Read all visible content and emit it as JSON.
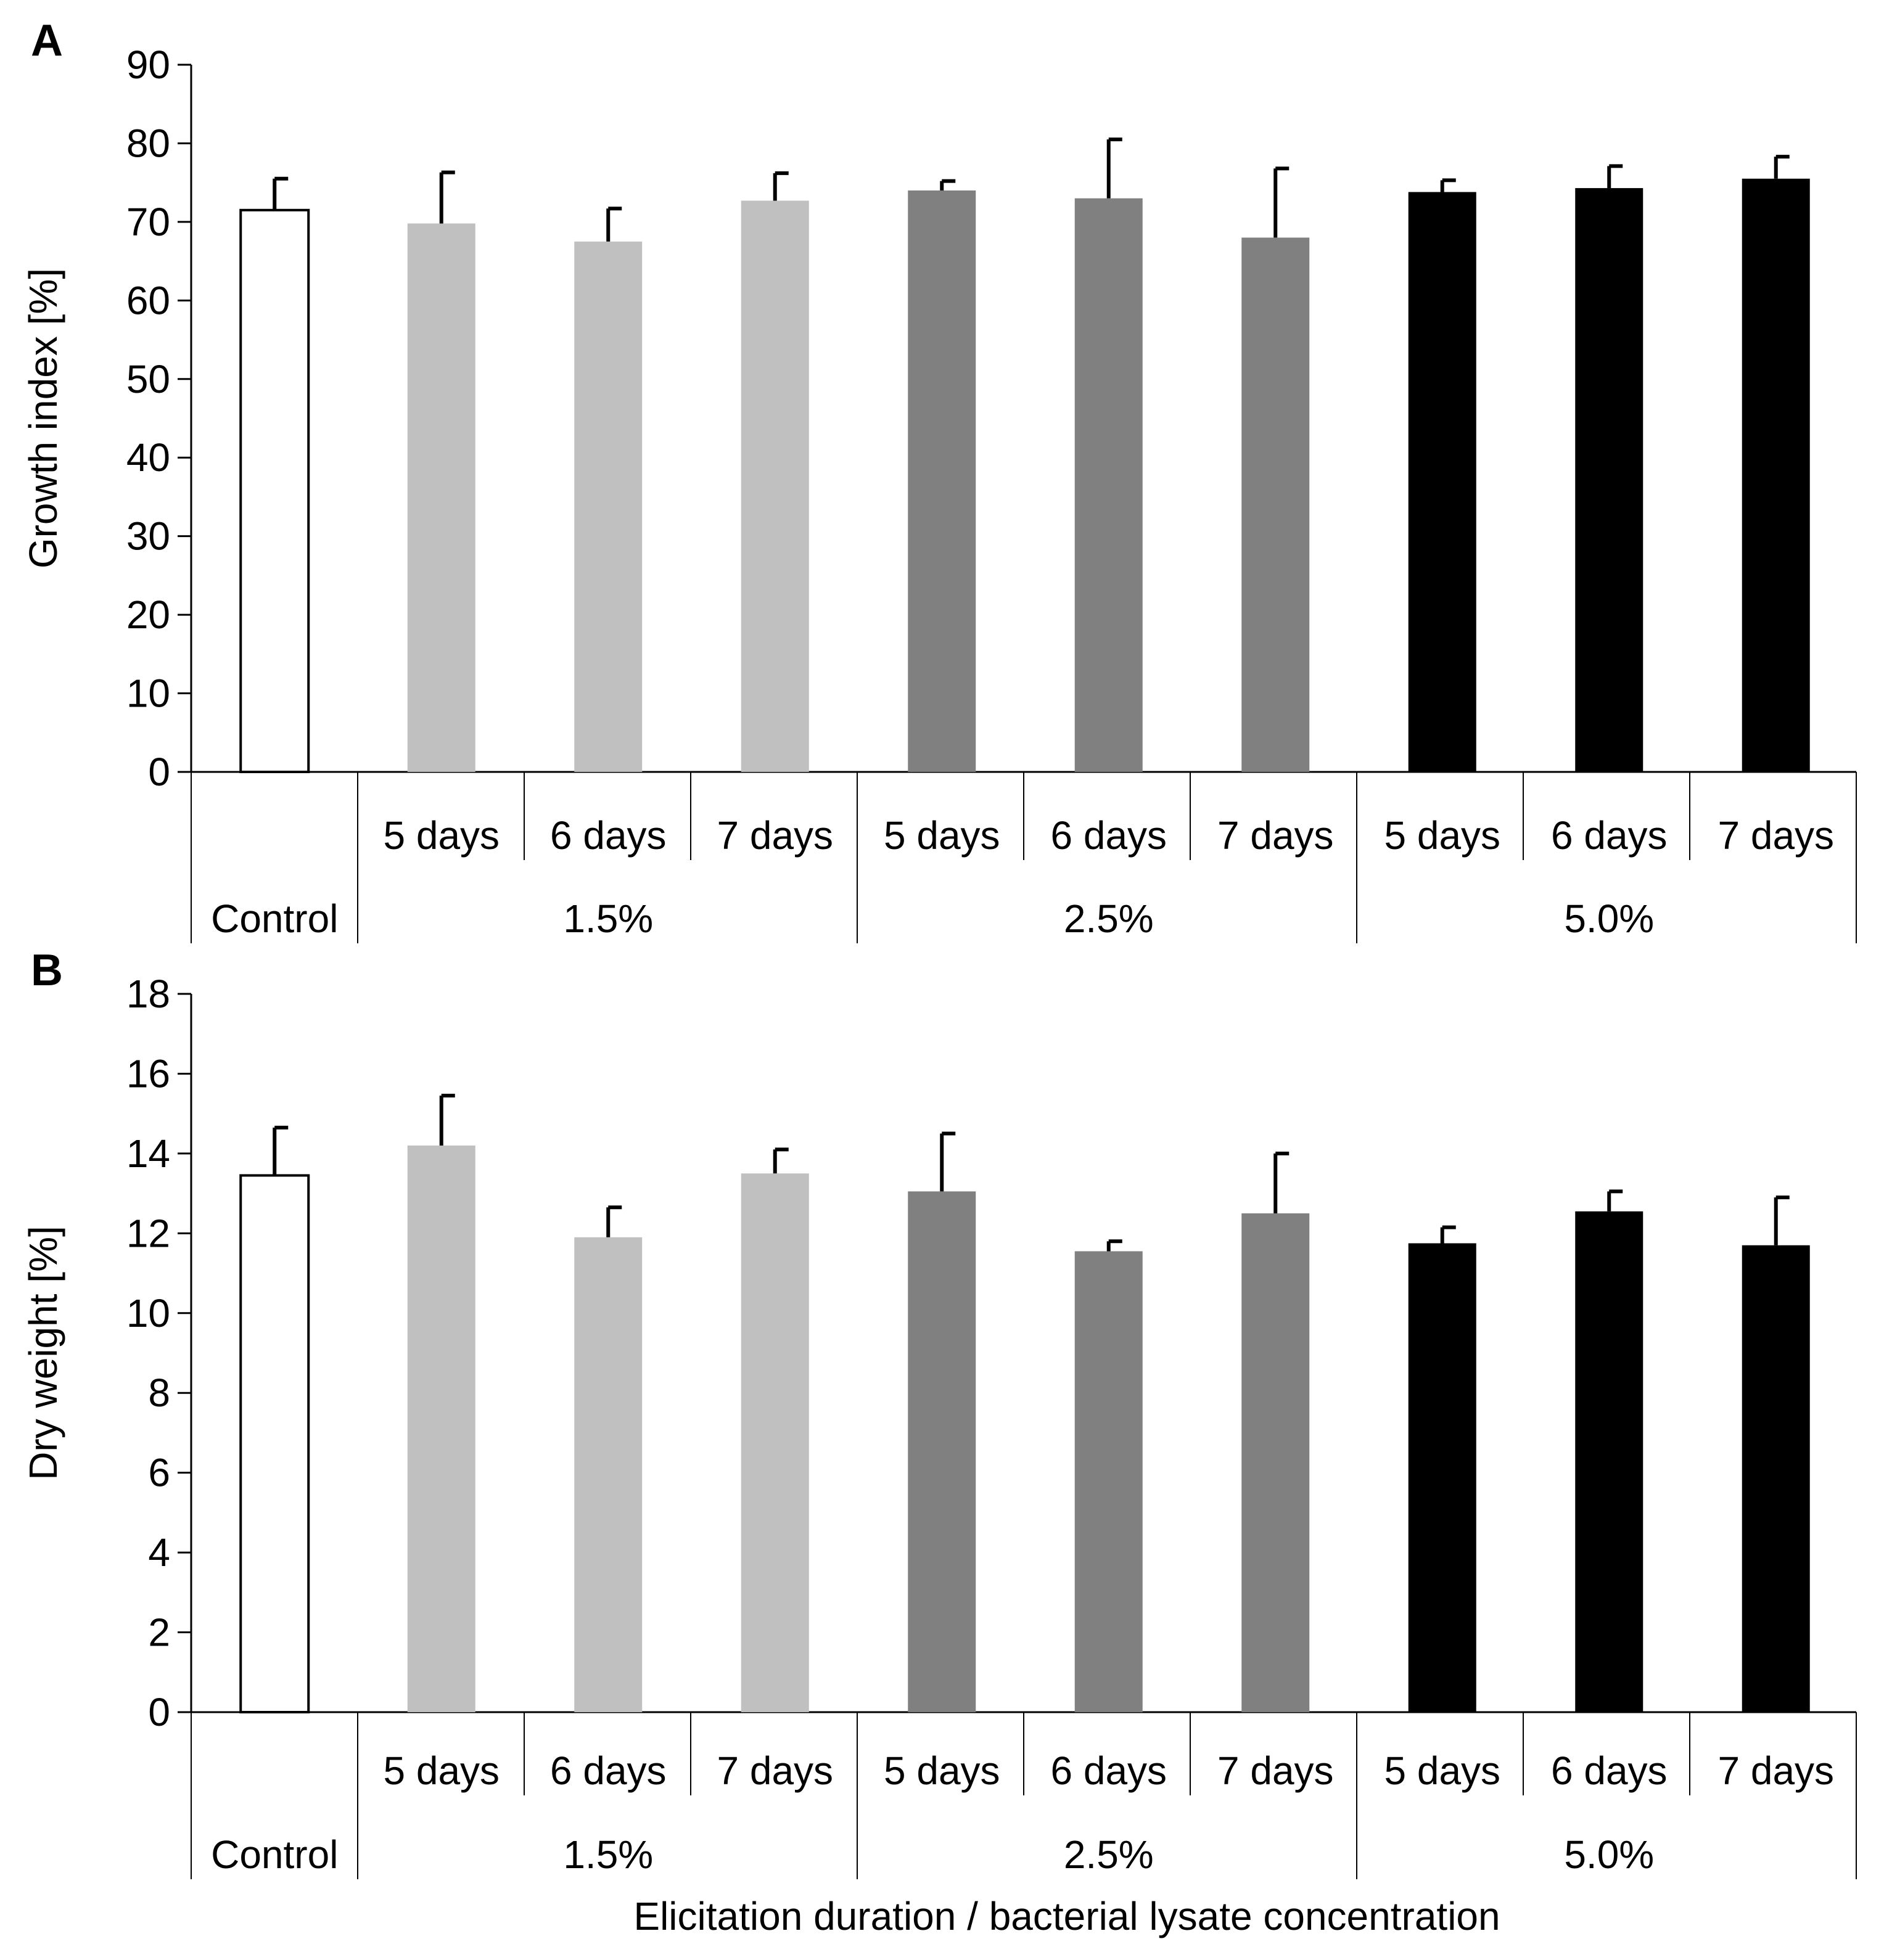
{
  "x_axis_title": "Elicitation duration / bacterial lysate concentration",
  "colors": {
    "control": "#ffffff",
    "c15": "#c0c0c0",
    "c25": "#808080",
    "c50": "#000000"
  },
  "chart_data": [
    {
      "type": "bar",
      "panel_label": "A",
      "ylabel": "Growth index [%]",
      "ylim": [
        0,
        90
      ],
      "yticks": [
        0,
        10,
        20,
        30,
        40,
        50,
        60,
        70,
        80,
        90
      ],
      "categories": [
        "",
        "5 days",
        "6 days",
        "7 days",
        "5 days",
        "6 days",
        "7 days",
        "5 days",
        "6 days",
        "7 days"
      ],
      "groups": [
        {
          "label": "Control",
          "start": 0,
          "count": 1,
          "color_key": "control"
        },
        {
          "label": "1.5%",
          "start": 1,
          "count": 3,
          "color_key": "c15"
        },
        {
          "label": "2.5%",
          "start": 4,
          "count": 3,
          "color_key": "c25"
        },
        {
          "label": "5.0%",
          "start": 7,
          "count": 3,
          "color_key": "c50"
        }
      ],
      "values": [
        71.5,
        69.8,
        67.5,
        72.7,
        74.0,
        73.0,
        68.0,
        73.8,
        74.3,
        75.5
      ],
      "errors": [
        4.0,
        6.5,
        4.2,
        3.5,
        1.2,
        7.5,
        8.8,
        1.5,
        2.8,
        2.8
      ]
    },
    {
      "type": "bar",
      "panel_label": "B",
      "ylabel": "Dry weight [%]",
      "ylim": [
        0,
        18
      ],
      "yticks": [
        0,
        2,
        4,
        6,
        8,
        10,
        12,
        14,
        16,
        18
      ],
      "categories": [
        "",
        "5 days",
        "6 days",
        "7 days",
        "5 days",
        "6 days",
        "7 days",
        "5 days",
        "6 days",
        "7 days"
      ],
      "groups": [
        {
          "label": "Control",
          "start": 0,
          "count": 1,
          "color_key": "control"
        },
        {
          "label": "1.5%",
          "start": 1,
          "count": 3,
          "color_key": "c15"
        },
        {
          "label": "2.5%",
          "start": 4,
          "count": 3,
          "color_key": "c25"
        },
        {
          "label": "5.0%",
          "start": 7,
          "count": 3,
          "color_key": "c50"
        }
      ],
      "values": [
        13.45,
        14.2,
        11.9,
        13.5,
        13.05,
        11.55,
        12.5,
        11.75,
        12.55,
        11.7
      ],
      "errors": [
        1.2,
        1.25,
        0.75,
        0.6,
        1.45,
        0.25,
        1.5,
        0.4,
        0.5,
        1.2
      ]
    }
  ]
}
